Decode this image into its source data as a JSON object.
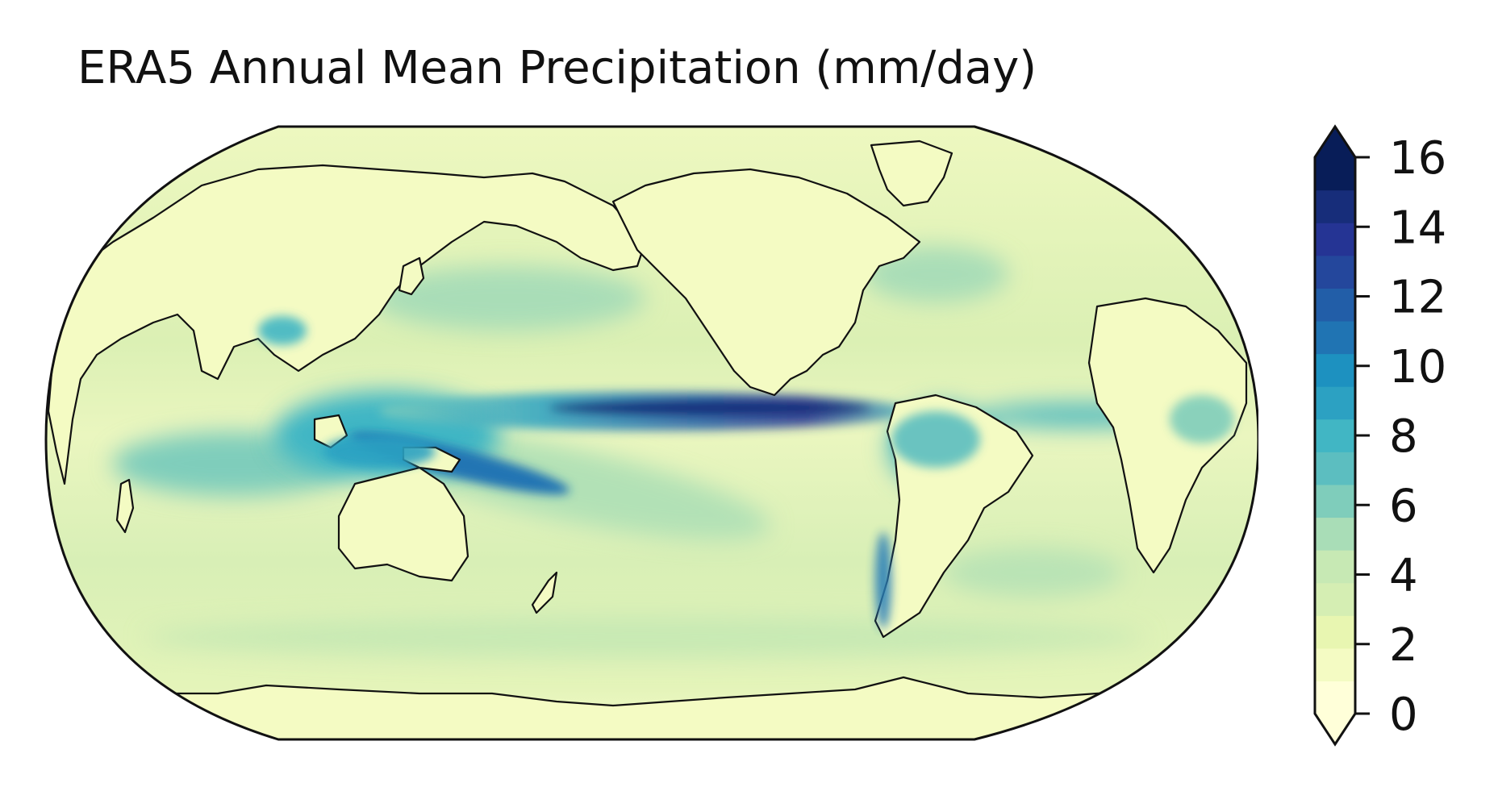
{
  "title": "ERA5 Annual Mean Precipitation (mm/day)",
  "map": {
    "projection": "robinson",
    "central_longitude": 180,
    "coastlines": true,
    "colormap": "YlGnBu"
  },
  "colorbar": {
    "min": 0,
    "max": 16,
    "extend": "both",
    "tick_labels": [
      "0",
      "2",
      "4",
      "6",
      "8",
      "10",
      "12",
      "14",
      "16"
    ],
    "level_colors": [
      "#ffffd9",
      "#f4fbc3",
      "#e8f6b1",
      "#d5eeb3",
      "#c7e9b4",
      "#a9ddb7",
      "#7fcdbb",
      "#5cbec0",
      "#41b6c4",
      "#2ca1c2",
      "#1d91c0",
      "#2074b3",
      "#225ea8",
      "#24479c",
      "#253494",
      "#172d7a",
      "#081d58"
    ]
  }
}
